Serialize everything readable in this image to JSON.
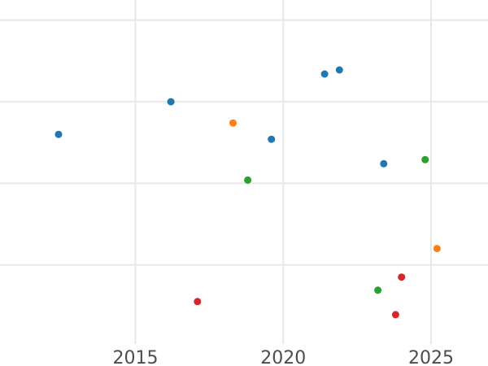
{
  "chart_data": {
    "type": "scatter",
    "title": "",
    "xlabel": "",
    "ylabel": "",
    "legend": "none",
    "x_axis": {
      "ticks": [
        2015,
        2020,
        2025
      ],
      "tick_labels": [
        "2015",
        "2020",
        "2025"
      ],
      "range": [
        2010.4,
        2026.9
      ],
      "gridlines": true
    },
    "y_axis": {
      "tick_labels_visible": false,
      "gridline_values": [
        1,
        2,
        3,
        4
      ],
      "range": [
        0.0,
        4.25
      ],
      "gridlines": true
    },
    "series": [
      {
        "name": "blue",
        "color": "#1f77b4",
        "points": [
          {
            "x": 2012.4,
            "y": 2.6
          },
          {
            "x": 2016.2,
            "y": 3.0
          },
          {
            "x": 2019.6,
            "y": 2.54
          },
          {
            "x": 2021.4,
            "y": 3.34
          },
          {
            "x": 2021.9,
            "y": 3.39
          },
          {
            "x": 2023.4,
            "y": 2.24
          }
        ]
      },
      {
        "name": "orange",
        "color": "#ff7f0e",
        "points": [
          {
            "x": 2018.3,
            "y": 2.74
          },
          {
            "x": 2025.2,
            "y": 1.2
          }
        ]
      },
      {
        "name": "green",
        "color": "#2ca02c",
        "points": [
          {
            "x": 2018.8,
            "y": 2.04
          },
          {
            "x": 2024.8,
            "y": 2.29
          },
          {
            "x": 2023.2,
            "y": 0.69
          }
        ]
      },
      {
        "name": "red",
        "color": "#d62728",
        "points": [
          {
            "x": 2017.1,
            "y": 0.55
          },
          {
            "x": 2024.0,
            "y": 0.85
          },
          {
            "x": 2023.8,
            "y": 0.39
          }
        ]
      }
    ],
    "marker": {
      "shape": "circle",
      "radius_px": 4.5
    },
    "colors": {
      "background": "#ffffff",
      "grid": "#e8e8e8",
      "tick_text": "#4d4d4d"
    }
  }
}
